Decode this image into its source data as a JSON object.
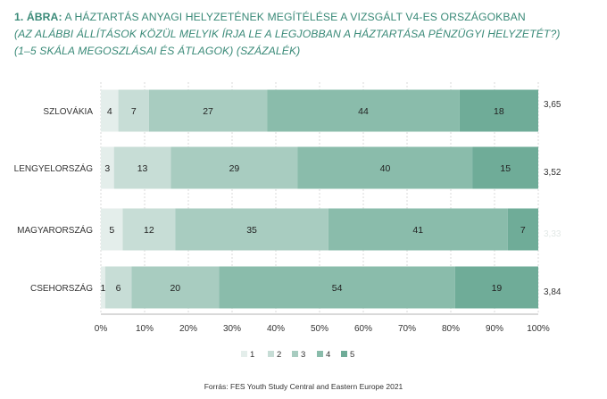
{
  "title": {
    "number": "1. ÁBRA:",
    "text": "A HÁZTARTÁS ANYAGI HELYZETÉNEK MEGÍTÉLÉSE A VIZSGÁLT V4-ES ORSZÁGOKBAN",
    "subtitle_1": "(AZ ALÁBBI ÁLLÍTÁSOK KÖZÜL MELYIK ÍRJA LE A LEGJOBBAN A HÁZTARTÁSA PÉNZÜGYI HELYZETÉT?)",
    "subtitle_2": "(1–5 SKÁLA MEGOSZLÁSAI ÉS ÁTLAGOK) (SZÁZALÉK)"
  },
  "source": "Forrás: FES Youth Study Central and Eastern Europe 2021",
  "chart_data": {
    "type": "bar",
    "orientation": "horizontal",
    "stacked": true,
    "categories": [
      "SZLOVÁKIA",
      "LENGYELORSZÁG",
      "MAGYARORSZÁG",
      "CSEHORSZÁG"
    ],
    "series": [
      {
        "name": "1",
        "values": [
          4,
          3,
          5,
          1
        ],
        "color": "#e4eeeb"
      },
      {
        "name": "2",
        "values": [
          7,
          13,
          12,
          6
        ],
        "color": "#c7ddd6"
      },
      {
        "name": "3",
        "values": [
          27,
          29,
          35,
          20
        ],
        "color": "#a8ccc0"
      },
      {
        "name": "4",
        "values": [
          44,
          40,
          41,
          54
        ],
        "color": "#8abcab"
      },
      {
        "name": "5",
        "values": [
          18,
          15,
          7,
          19
        ],
        "color": "#6fac98"
      }
    ],
    "data_labels": [
      [
        "4",
        "7",
        "27",
        "44",
        "18"
      ],
      [
        "3",
        "13",
        "29",
        "40",
        "15"
      ],
      [
        "5",
        "12",
        "35",
        "41",
        "7"
      ],
      [
        "1",
        "6",
        "20",
        "54",
        "19"
      ]
    ],
    "averages": [
      "3,65",
      "3,52",
      "3,33",
      "3,84"
    ],
    "average_colors": [
      "#333333",
      "#333333",
      "#e2e8e6",
      "#333333"
    ],
    "x_ticks": [
      "0%",
      "10%",
      "20%",
      "30%",
      "40%",
      "50%",
      "60%",
      "70%",
      "80%",
      "90%",
      "100%"
    ],
    "xlim": [
      0,
      100
    ],
    "grid": true,
    "legend_position": "bottom"
  }
}
